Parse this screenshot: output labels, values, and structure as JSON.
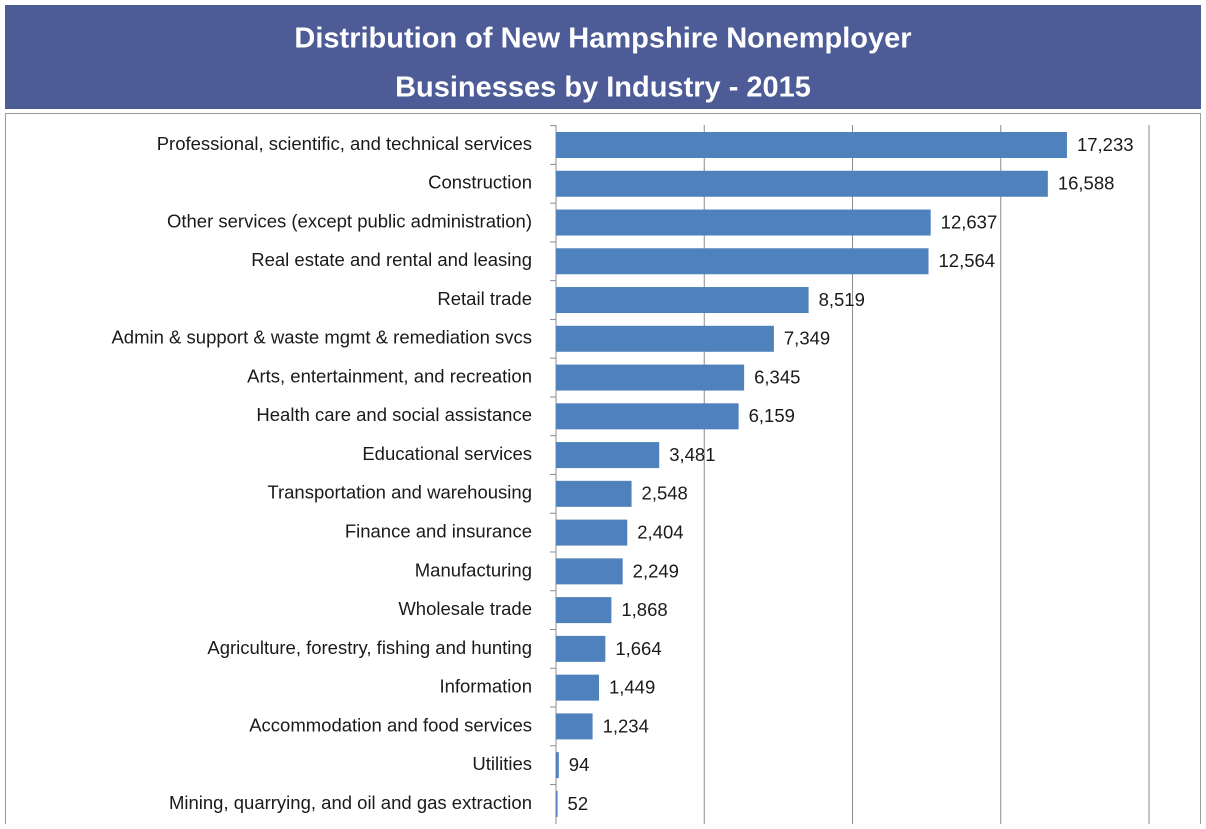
{
  "chart_data": {
    "type": "hbar",
    "title": [
      "Distribution of New Hampshire Nonemployer",
      "Businesses by Industry - 2015"
    ],
    "categories": [
      "Professional, scientific, and technical services",
      "Construction",
      "Other services (except public administration)",
      "Real estate and rental and leasing",
      "Retail trade",
      "Admin & support & waste mgmt & remediation svcs",
      "Arts, entertainment, and recreation",
      "Health care and social assistance",
      "Educational services",
      "Transportation and warehousing",
      "Finance and insurance",
      "Manufacturing",
      "Wholesale trade",
      "Agriculture, forestry, fishing and hunting",
      "Information",
      "Accommodation and food services",
      "Utilities",
      "Mining, quarrying, and oil and gas extraction"
    ],
    "values": [
      17233,
      16588,
      12637,
      12564,
      8519,
      7349,
      6345,
      6159,
      3481,
      2548,
      2404,
      2249,
      1868,
      1664,
      1449,
      1234,
      94,
      52
    ],
    "value_labels": [
      "17,233",
      "16,588",
      "12,637",
      "12,564",
      "8,519",
      "7,349",
      "6,345",
      "6,159",
      "3,481",
      "2,548",
      "2,404",
      "2,249",
      "1,868",
      "1,664",
      "1,449",
      "1,234",
      "94",
      "52"
    ],
    "color": "#4f81bd",
    "xlim": [
      0,
      20000
    ],
    "xticks": [
      0,
      5000,
      10000,
      15000,
      20000
    ],
    "grid": true
  }
}
